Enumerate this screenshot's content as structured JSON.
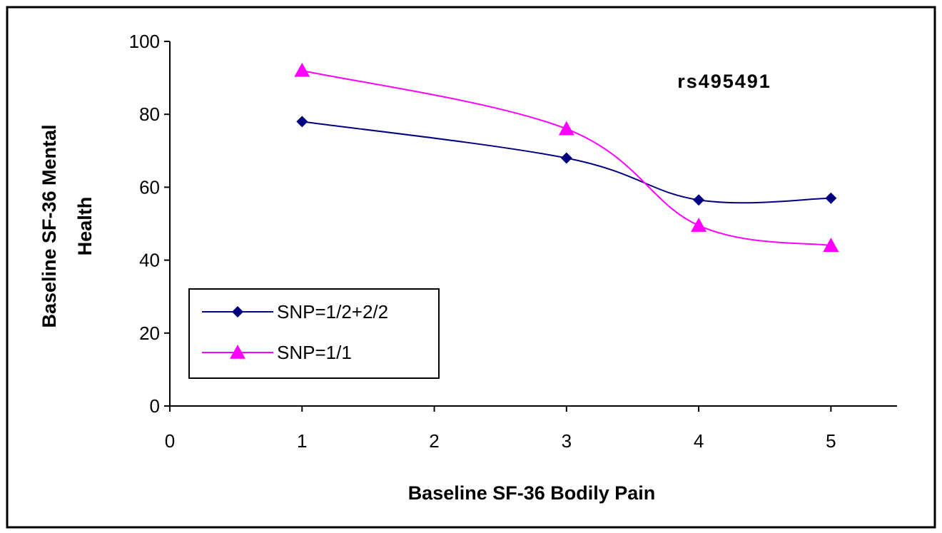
{
  "chart_data": {
    "type": "line",
    "title": "",
    "annotation": "rs495491",
    "xlabel": "Baseline SF-36 Bodily Pain",
    "ylabel_lines": [
      "Baseline SF-36 Mental",
      "Health"
    ],
    "xlim": [
      0,
      5.5
    ],
    "ylim": [
      0,
      100
    ],
    "x_ticks": [
      0,
      1,
      2,
      3,
      4,
      5
    ],
    "y_ticks": [
      0,
      20,
      40,
      60,
      80,
      100
    ],
    "grid": false,
    "legend_position": "bottom-left",
    "series": [
      {
        "name": "SNP=1/2+2/2",
        "color": "#000080",
        "marker": "diamond",
        "x": [
          1,
          3,
          4,
          5
        ],
        "y": [
          78,
          68,
          56.5,
          57
        ]
      },
      {
        "name": "SNP=1/1",
        "color": "#ff00ff",
        "marker": "triangle",
        "x": [
          1,
          3,
          4,
          5
        ],
        "y": [
          92,
          76,
          49.5,
          44
        ]
      }
    ]
  }
}
